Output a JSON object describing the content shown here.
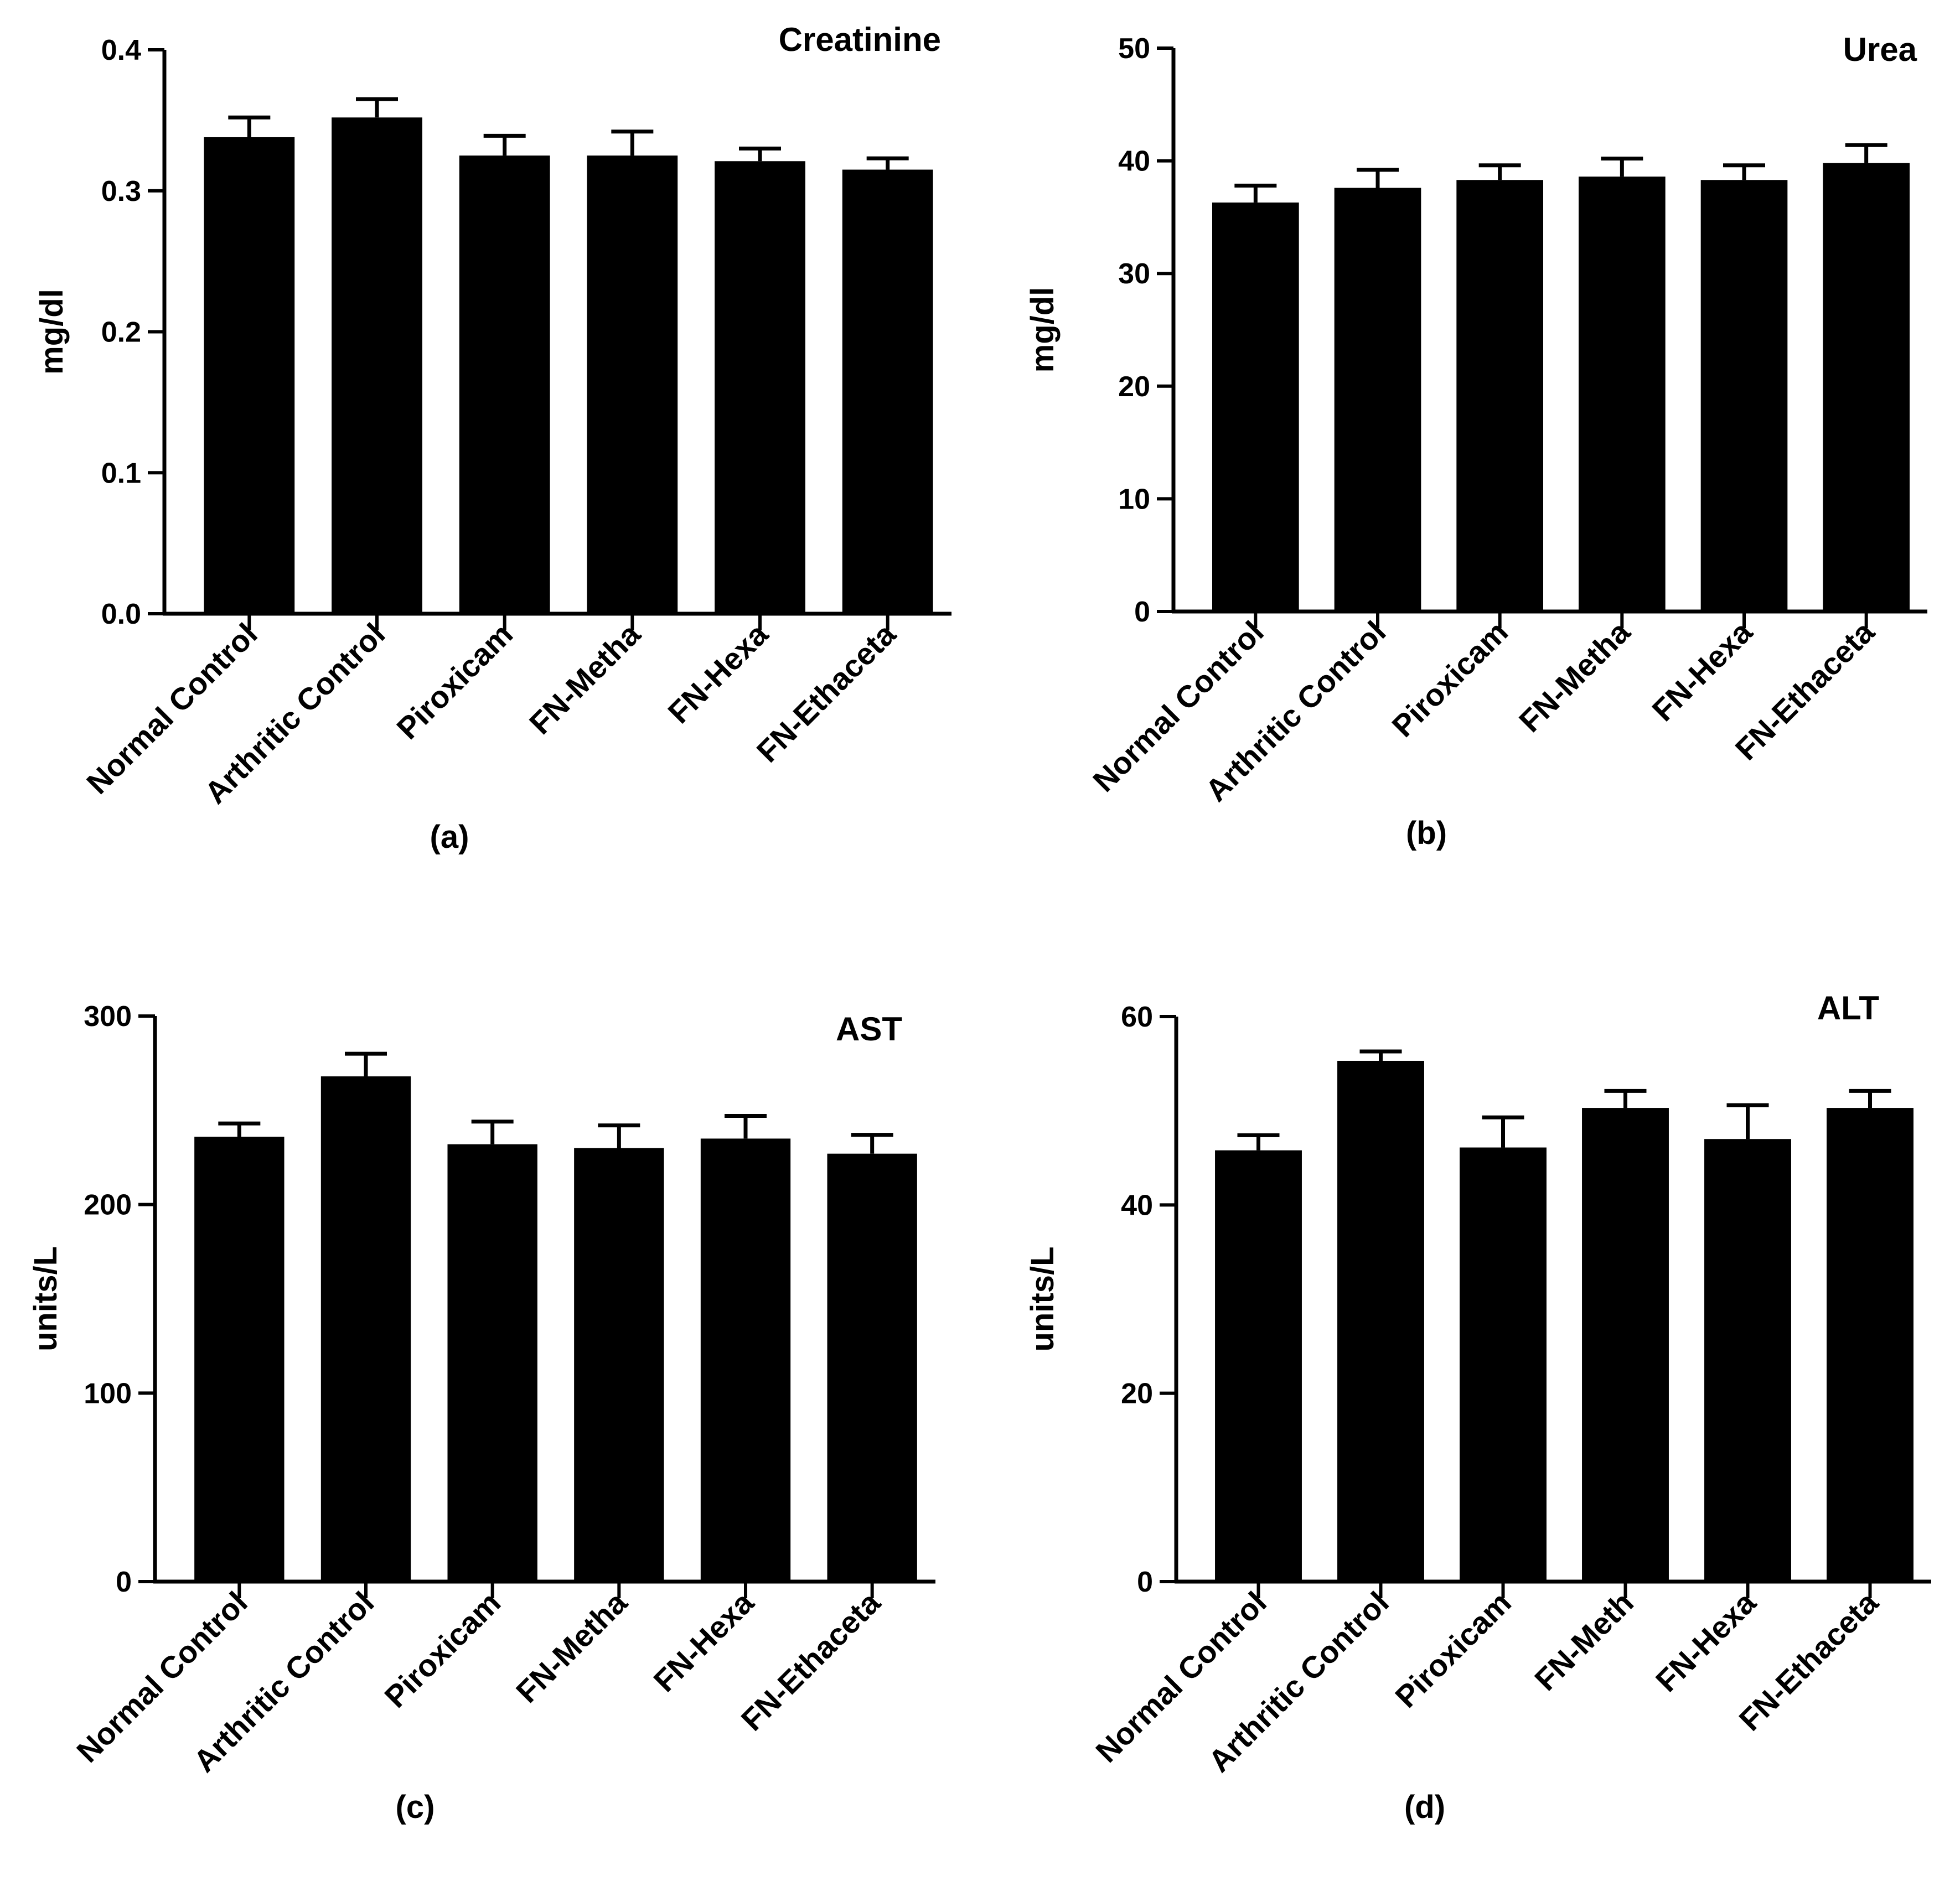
{
  "chart_data": [
    {
      "type": "bar",
      "panel": "(a)",
      "title": "Creatinine",
      "xlabel": "",
      "ylabel": "mg/dl",
      "ylim": [
        0,
        0.4
      ],
      "yticks": [
        "0.0",
        "0.1",
        "0.2",
        "0.3",
        "0.4"
      ],
      "categories": [
        "Normal Control",
        "Arthritic Control",
        "Piroxicam",
        "FN-Metha",
        "FN-Hexa",
        "FN-Ethaceta"
      ],
      "values": [
        0.338,
        0.352,
        0.325,
        0.325,
        0.321,
        0.315
      ],
      "errors": [
        0.014,
        0.013,
        0.014,
        0.017,
        0.009,
        0.008
      ]
    },
    {
      "type": "bar",
      "panel": "(b)",
      "title": "Urea",
      "xlabel": "",
      "ylabel": "mg/dl",
      "ylim": [
        0,
        50
      ],
      "yticks": [
        "0",
        "10",
        "20",
        "30",
        "40",
        "50"
      ],
      "categories": [
        "Normal Control",
        "Arthritic Control",
        "Piroxicam",
        "FN-Metha",
        "FN-Hexa",
        "FN-Ethaceta"
      ],
      "values": [
        36.3,
        37.6,
        38.3,
        38.6,
        38.3,
        39.8
      ],
      "errors": [
        1.5,
        1.6,
        1.3,
        1.6,
        1.3,
        1.6
      ]
    },
    {
      "type": "bar",
      "panel": "(c)",
      "title": "AST",
      "xlabel": "",
      "ylabel": "units/L",
      "ylim": [
        0,
        300
      ],
      "yticks": [
        "0",
        "100",
        "200",
        "300"
      ],
      "categories": [
        "Normal Control",
        "Arthritic Control",
        "Piroxicam",
        "FN-Metha",
        "FN-Hexa",
        "FN-Ethaceta"
      ],
      "values": [
        236,
        268,
        232,
        230,
        235,
        227
      ],
      "errors": [
        7,
        12,
        12,
        12,
        12,
        10
      ]
    },
    {
      "type": "bar",
      "panel": "(d)",
      "title": "ALT",
      "xlabel": "",
      "ylabel": "units/L",
      "ylim": [
        0,
        60
      ],
      "yticks": [
        "0",
        "20",
        "40",
        "60"
      ],
      "categories": [
        "Normal Control",
        "Arthritic Control",
        "Piroxicam",
        "FN-Meth",
        "FN-Hexa",
        "FN-Ethaceta"
      ],
      "values": [
        45.8,
        55.3,
        46.1,
        50.3,
        47.0,
        50.3
      ],
      "errors": [
        1.6,
        1.0,
        3.2,
        1.8,
        3.6,
        1.8
      ]
    }
  ]
}
